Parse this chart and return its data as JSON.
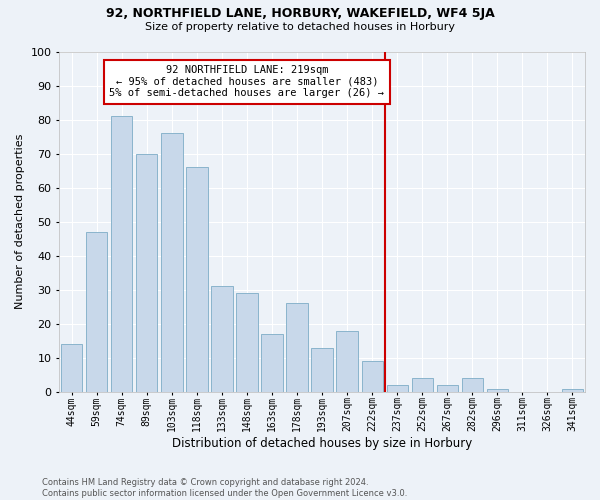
{
  "title1": "92, NORTHFIELD LANE, HORBURY, WAKEFIELD, WF4 5JA",
  "title2": "Size of property relative to detached houses in Horbury",
  "xlabel": "Distribution of detached houses by size in Horbury",
  "ylabel": "Number of detached properties",
  "categories": [
    "44sqm",
    "59sqm",
    "74sqm",
    "89sqm",
    "103sqm",
    "118sqm",
    "133sqm",
    "148sqm",
    "163sqm",
    "178sqm",
    "193sqm",
    "207sqm",
    "222sqm",
    "237sqm",
    "252sqm",
    "267sqm",
    "282sqm",
    "296sqm",
    "311sqm",
    "326sqm",
    "341sqm"
  ],
  "values": [
    14,
    47,
    81,
    70,
    76,
    66,
    31,
    29,
    17,
    26,
    13,
    18,
    9,
    2,
    4,
    2,
    4,
    1,
    0,
    0,
    1
  ],
  "bar_color": "#c8d8ea",
  "bar_edge_color": "#8ab4cc",
  "vline_x": 12.5,
  "vline_color": "#cc0000",
  "annotation_text": "92 NORTHFIELD LANE: 219sqm\n← 95% of detached houses are smaller (483)\n5% of semi-detached houses are larger (26) →",
  "annotation_box_color": "#cc0000",
  "background_color": "#edf2f8",
  "grid_color": "#ffffff",
  "footer": "Contains HM Land Registry data © Crown copyright and database right 2024.\nContains public sector information licensed under the Open Government Licence v3.0.",
  "ylim": [
    0,
    100
  ],
  "yticks": [
    0,
    10,
    20,
    30,
    40,
    50,
    60,
    70,
    80,
    90,
    100
  ]
}
